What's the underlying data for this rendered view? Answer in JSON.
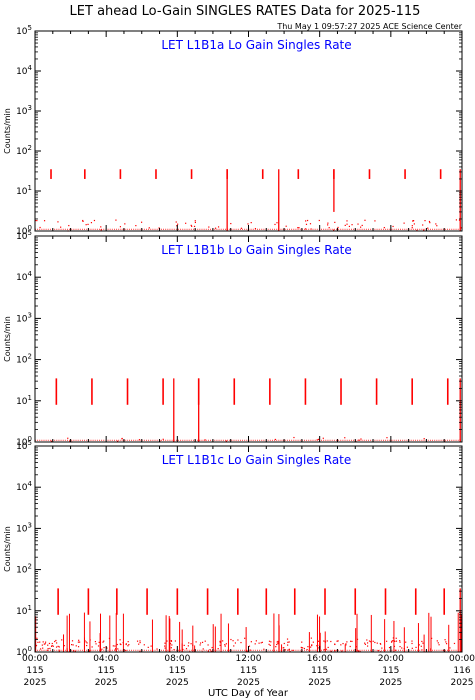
{
  "header": {
    "title": "LET ahead Lo-Gain SINGLES RATES Data for 2025-115",
    "timestamp": "Thu May  1 09:57:27 2025 ACE Science Center"
  },
  "xaxis_label": "UTC Day of Year",
  "colors": {
    "data": "#ff0000",
    "panel_title": "#0000ff",
    "axes": "#000000"
  },
  "chart_data": [
    {
      "type": "scatter",
      "title": "LET L1B1a Lo Gain Singles Rate",
      "ylabel": "Counts/min",
      "yscale": "log",
      "ylim": [
        1,
        100000
      ],
      "yticks": [
        "10^0",
        "10^1",
        "10^2",
        "10^3",
        "10^4",
        "10^5"
      ],
      "xlim": [
        0,
        24
      ],
      "x_unit": "hours UTC, day 115 of 2025",
      "periodic_spikes": {
        "x": [
          0.9,
          2.8,
          4.8,
          6.8,
          8.8,
          10.8,
          12.8,
          14.8,
          16.8,
          18.8,
          20.8,
          22.8
        ],
        "low": 20,
        "high": 35
      },
      "long_spikes": [
        {
          "x": 10.8,
          "low": 1,
          "high": 35
        },
        {
          "x": 13.7,
          "low": 1,
          "high": 35
        },
        {
          "x": 16.8,
          "low": 3,
          "high": 35
        },
        {
          "x": 23.9,
          "low": 1,
          "high": 35
        }
      ],
      "baseline": "1-2 counts/min with sparse noise"
    },
    {
      "type": "scatter",
      "title": "LET L1B1b Lo Gain Singles Rate",
      "ylabel": "Counts/min",
      "yscale": "log",
      "ylim": [
        1,
        100000
      ],
      "yticks": [
        "10^0",
        "10^1",
        "10^2",
        "10^3",
        "10^4",
        "10^5"
      ],
      "xlim": [
        0,
        24
      ],
      "x_unit": "hours UTC, day 115 of 2025",
      "periodic_spikes": {
        "x": [
          1.2,
          3.2,
          5.2,
          7.2,
          9.2,
          11.2,
          13.2,
          15.2,
          17.2,
          19.2,
          21.2,
          23.2
        ],
        "low": 8,
        "high": 35
      },
      "long_spikes": [
        {
          "x": 7.8,
          "low": 1,
          "high": 35
        },
        {
          "x": 9.2,
          "low": 1,
          "high": 35
        },
        {
          "x": 23.9,
          "low": 1,
          "high": 35
        }
      ],
      "baseline": "about 1 count/min, mostly empty"
    },
    {
      "type": "scatter",
      "title": "LET L1B1c Lo Gain Singles Rate",
      "ylabel": "Counts/min",
      "yscale": "log",
      "ylim": [
        1,
        100000
      ],
      "yticks": [
        "10^0",
        "10^1",
        "10^2",
        "10^3",
        "10^4",
        "10^5"
      ],
      "xlim": [
        0,
        24
      ],
      "x_unit": "hours UTC, day 115 of 2025",
      "periodic_spikes": {
        "x": [
          1.3,
          3.0,
          4.6,
          6.3,
          8.0,
          9.7,
          11.4,
          13.0,
          14.6,
          16.3,
          18.0,
          19.7,
          21.4,
          23.0
        ],
        "low": 8,
        "high": 35
      },
      "long_spikes": [
        {
          "x": 23.9,
          "low": 1,
          "high": 35
        }
      ],
      "baseline": "dense noise 1-3 counts/min with frequent spikes up to 10"
    }
  ],
  "xticks": [
    {
      "hour": 0,
      "time": "00:00",
      "doy": "115",
      "year": "2025"
    },
    {
      "hour": 4,
      "time": "04:00",
      "doy": "115",
      "year": "2025"
    },
    {
      "hour": 8,
      "time": "08:00",
      "doy": "115",
      "year": "2025"
    },
    {
      "hour": 12,
      "time": "12:00",
      "doy": "115",
      "year": "2025"
    },
    {
      "hour": 16,
      "time": "16:00",
      "doy": "115",
      "year": "2025"
    },
    {
      "hour": 20,
      "time": "20:00",
      "doy": "115",
      "year": "2025"
    },
    {
      "hour": 24,
      "time": "00:00",
      "doy": "116",
      "year": "2025"
    }
  ]
}
